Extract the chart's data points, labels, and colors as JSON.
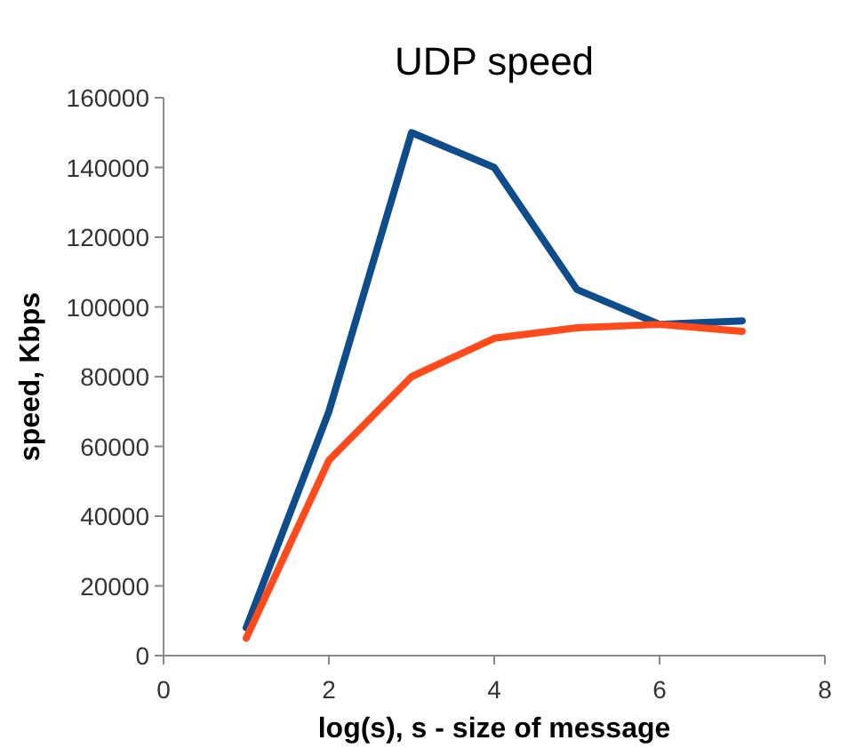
{
  "chart_data": {
    "type": "line",
    "title": "UDP speed",
    "xlabel": "log(s), s - size of message",
    "ylabel": "speed, Kbps",
    "x": [
      1,
      2,
      3,
      4,
      5,
      6,
      7
    ],
    "series": [
      {
        "color": "#0f4c8c",
        "values": [
          8000,
          70000,
          150000,
          140000,
          105000,
          95000,
          96000
        ]
      },
      {
        "color": "#ff4a1c",
        "values": [
          5000,
          56000,
          80000,
          91000,
          94000,
          95000,
          93000
        ]
      }
    ],
    "xlim": [
      0,
      8
    ],
    "xticks": [
      0,
      2,
      4,
      6,
      8
    ],
    "ylim": [
      0,
      160000
    ],
    "yticks": [
      0,
      20000,
      40000,
      60000,
      80000,
      100000,
      120000,
      140000,
      160000
    ],
    "grid": false,
    "line_style": "solid"
  }
}
